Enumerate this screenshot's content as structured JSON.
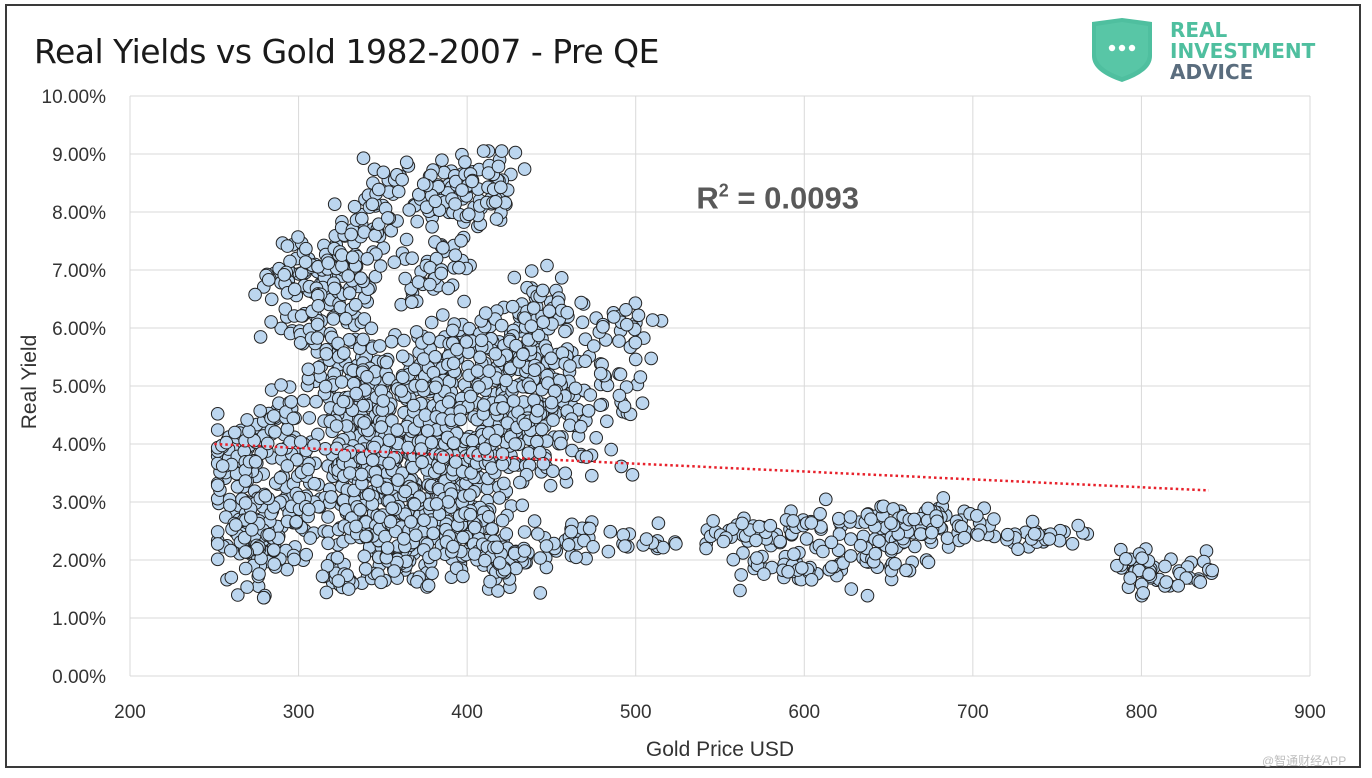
{
  "page": {
    "watermark": "@智通财经APP"
  },
  "logo": {
    "line1": "REAL",
    "line2": "INVESTMENT",
    "line3": "ADVICE",
    "shield_color": "#4fbf9f",
    "advice_color": "#5a6d7e"
  },
  "chart_data": {
    "type": "scatter",
    "title": "Real Yields vs Gold 1982-2007 - Pre QE",
    "xlabel": "Gold Price USD",
    "ylabel": "Real Yield",
    "xlim": [
      200,
      900
    ],
    "ylim": [
      0,
      10
    ],
    "x_ticks": [
      200,
      300,
      400,
      500,
      600,
      700,
      800,
      900
    ],
    "y_ticks": [
      "0.00%",
      "1.00%",
      "2.00%",
      "3.00%",
      "4.00%",
      "5.00%",
      "6.00%",
      "7.00%",
      "8.00%",
      "9.00%",
      "10.00%"
    ],
    "y_tick_values": [
      0,
      1,
      2,
      3,
      4,
      5,
      6,
      7,
      8,
      9,
      10
    ],
    "grid": true,
    "annotation": {
      "r2_prefix": "R",
      "r2_superscript": "2",
      "r2_value": " = 0.0093",
      "anchor_data": [
        536,
        8.25
      ]
    },
    "marker_fill": "#bcd6ef",
    "marker_edge": "#222222",
    "trendline": {
      "color": "#e8212b",
      "style": "dotted",
      "x": [
        250,
        840
      ],
      "y": [
        4.0,
        3.2
      ]
    },
    "clusters": [
      {
        "cx": 275,
        "cy": 2.5,
        "sx": 12,
        "sy": 0.5,
        "n": 180
      },
      {
        "cx": 265,
        "cy": 3.9,
        "sx": 10,
        "sy": 0.3,
        "n": 60
      },
      {
        "cx": 290,
        "cy": 4.4,
        "sx": 8,
        "sy": 0.3,
        "n": 40
      },
      {
        "cx": 300,
        "cy": 6.8,
        "sx": 12,
        "sy": 0.4,
        "n": 70
      },
      {
        "cx": 320,
        "cy": 6.0,
        "sx": 12,
        "sy": 0.7,
        "n": 90
      },
      {
        "cx": 335,
        "cy": 7.2,
        "sx": 12,
        "sy": 0.6,
        "n": 60
      },
      {
        "cx": 345,
        "cy": 8.2,
        "sx": 8,
        "sy": 0.3,
        "n": 25
      },
      {
        "cx": 340,
        "cy": 4.8,
        "sx": 14,
        "sy": 0.6,
        "n": 110
      },
      {
        "cx": 330,
        "cy": 3.3,
        "sx": 16,
        "sy": 0.6,
        "n": 170
      },
      {
        "cx": 325,
        "cy": 1.7,
        "sx": 6,
        "sy": 0.2,
        "n": 25
      },
      {
        "cx": 360,
        "cy": 2.3,
        "sx": 14,
        "sy": 0.4,
        "n": 110
      },
      {
        "cx": 365,
        "cy": 3.8,
        "sx": 16,
        "sy": 0.6,
        "n": 160
      },
      {
        "cx": 385,
        "cy": 8.3,
        "sx": 12,
        "sy": 0.35,
        "n": 70
      },
      {
        "cx": 385,
        "cy": 7.0,
        "sx": 10,
        "sy": 0.3,
        "n": 40
      },
      {
        "cx": 385,
        "cy": 5.2,
        "sx": 12,
        "sy": 0.5,
        "n": 100
      },
      {
        "cx": 395,
        "cy": 3.6,
        "sx": 16,
        "sy": 0.6,
        "n": 190
      },
      {
        "cx": 400,
        "cy": 2.5,
        "sx": 14,
        "sy": 0.4,
        "n": 110
      },
      {
        "cx": 415,
        "cy": 8.5,
        "sx": 8,
        "sy": 0.35,
        "n": 45
      },
      {
        "cx": 420,
        "cy": 5.6,
        "sx": 12,
        "sy": 0.5,
        "n": 90
      },
      {
        "cx": 425,
        "cy": 4.4,
        "sx": 12,
        "sy": 0.5,
        "n": 90
      },
      {
        "cx": 425,
        "cy": 2.0,
        "sx": 12,
        "sy": 0.25,
        "n": 50
      },
      {
        "cx": 445,
        "cy": 6.4,
        "sx": 12,
        "sy": 0.3,
        "n": 40
      },
      {
        "cx": 455,
        "cy": 5.5,
        "sx": 14,
        "sy": 0.4,
        "n": 60
      },
      {
        "cx": 460,
        "cy": 4.3,
        "sx": 14,
        "sy": 0.4,
        "n": 60
      },
      {
        "cx": 460,
        "cy": 2.3,
        "sx": 12,
        "sy": 0.2,
        "n": 30
      },
      {
        "cx": 490,
        "cy": 6.0,
        "sx": 10,
        "sy": 0.25,
        "n": 25
      },
      {
        "cx": 490,
        "cy": 4.8,
        "sx": 10,
        "sy": 0.3,
        "n": 20
      },
      {
        "cx": 515,
        "cy": 2.3,
        "sx": 12,
        "sy": 0.1,
        "n": 15
      },
      {
        "cx": 560,
        "cy": 2.45,
        "sx": 20,
        "sy": 0.12,
        "n": 40
      },
      {
        "cx": 600,
        "cy": 1.9,
        "sx": 20,
        "sy": 0.15,
        "n": 50
      },
      {
        "cx": 610,
        "cy": 2.6,
        "sx": 15,
        "sy": 0.1,
        "n": 20
      },
      {
        "cx": 650,
        "cy": 2.2,
        "sx": 18,
        "sy": 0.3,
        "n": 60
      },
      {
        "cx": 665,
        "cy": 2.7,
        "sx": 15,
        "sy": 0.15,
        "n": 50
      },
      {
        "cx": 700,
        "cy": 2.5,
        "sx": 12,
        "sy": 0.15,
        "n": 20
      },
      {
        "cx": 745,
        "cy": 2.4,
        "sx": 15,
        "sy": 0.1,
        "n": 25
      },
      {
        "cx": 800,
        "cy": 1.8,
        "sx": 10,
        "sy": 0.2,
        "n": 35
      },
      {
        "cx": 830,
        "cy": 1.8,
        "sx": 6,
        "sy": 0.2,
        "n": 15
      }
    ]
  }
}
